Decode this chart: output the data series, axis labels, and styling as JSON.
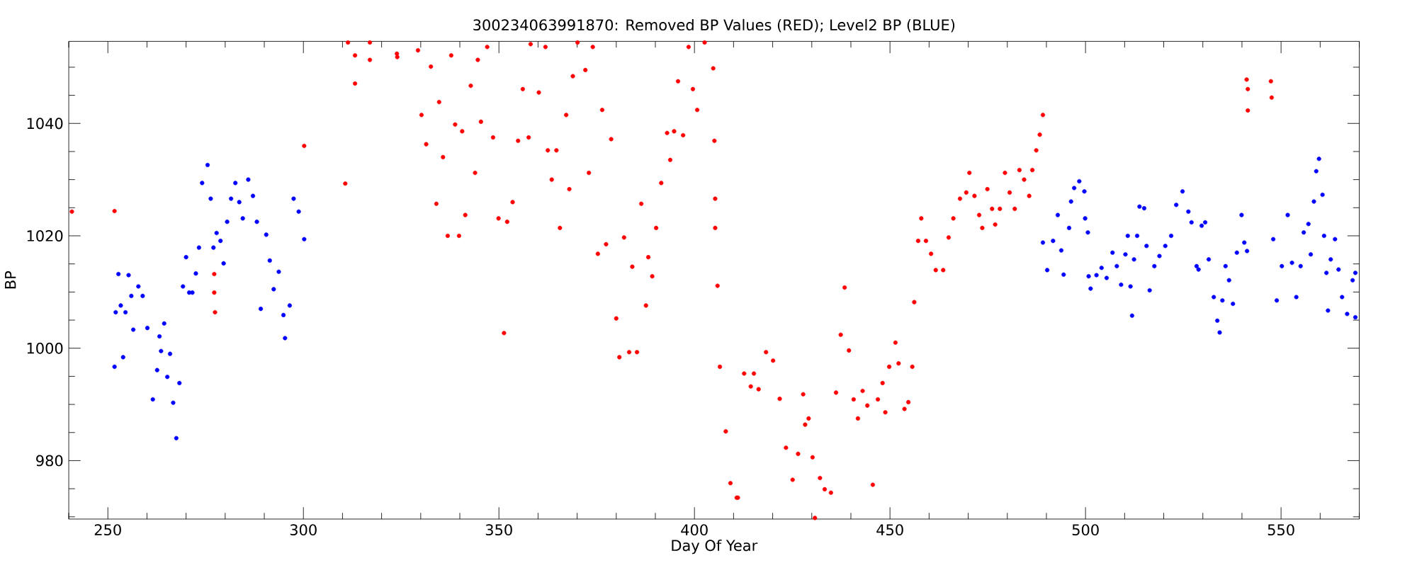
{
  "chart_data": {
    "type": "scatter",
    "title": "300234063991870: Removed BP Values (RED); Level2 BP (BLUE)",
    "xlabel": "Day Of Year",
    "ylabel": "BP",
    "marker": "circle",
    "xlim": [
      240,
      570
    ],
    "ylim": [
      969.6,
      1054.6
    ],
    "xticks": [
      {
        "value": 240,
        "label": null
      },
      250,
      {
        "value": 260,
        "label": null
      },
      {
        "value": 270,
        "label": null
      },
      {
        "value": 280,
        "label": null
      },
      {
        "value": 290,
        "label": null
      },
      300,
      {
        "value": 310,
        "label": null
      },
      {
        "value": 320,
        "label": null
      },
      {
        "value": 330,
        "label": null
      },
      {
        "value": 340,
        "label": null
      },
      350,
      {
        "value": 360,
        "label": null
      },
      {
        "value": 370,
        "label": null
      },
      {
        "value": 380,
        "label": null
      },
      {
        "value": 390,
        "label": null
      },
      400,
      {
        "value": 410,
        "label": null
      },
      {
        "value": 420,
        "label": null
      },
      {
        "value": 430,
        "label": null
      },
      {
        "value": 440,
        "label": null
      },
      450,
      {
        "value": 460,
        "label": null
      },
      {
        "value": 470,
        "label": null
      },
      {
        "value": 480,
        "label": null
      },
      {
        "value": 490,
        "label": null
      },
      500,
      {
        "value": 510,
        "label": null
      },
      {
        "value": 520,
        "label": null
      },
      {
        "value": 530,
        "label": null
      },
      {
        "value": 540,
        "label": null
      },
      550,
      {
        "value": 560,
        "label": null
      },
      {
        "value": 570,
        "label": null
      }
    ],
    "yticks": [
      {
        "value": 970,
        "label": null
      },
      {
        "value": 975,
        "label": null
      },
      980,
      {
        "value": 985,
        "label": null
      },
      {
        "value": 990,
        "label": null
      },
      {
        "value": 995,
        "label": null
      },
      1000,
      {
        "value": 1005,
        "label": null
      },
      {
        "value": 1010,
        "label": null
      },
      {
        "value": 1015,
        "label": null
      },
      1020,
      {
        "value": 1025,
        "label": null
      },
      {
        "value": 1030,
        "label": null
      },
      {
        "value": 1035,
        "label": null
      },
      1040,
      {
        "value": 1045,
        "label": null
      },
      {
        "value": 1050,
        "label": null
      }
    ],
    "series": [
      {
        "color": "#0000ff",
        "x": [
          251.7,
          252.0,
          252.7,
          253.3,
          253.9,
          254.5,
          255.3,
          256.0,
          256.5,
          257.8,
          258.9,
          260.1,
          261.5,
          262.6,
          263.2,
          263.6,
          264.4,
          265.2,
          265.9,
          266.7,
          267.5,
          268.3,
          269.2,
          270.0,
          270.8,
          271.6,
          272.5,
          273.3,
          274.1,
          275.5,
          276.3,
          277.0,
          277.8,
          278.8,
          279.6,
          280.5,
          281.5,
          282.6,
          283.6,
          284.5,
          285.9,
          287.1,
          288.1,
          289.1,
          290.5,
          291.4,
          292.4,
          293.7,
          294.9,
          295.3,
          296.5,
          297.5,
          298.8,
          300.2,
          489.1,
          490.2,
          491.7,
          492.9,
          493.8,
          494.4,
          495.8,
          496.3,
          497.1,
          498.4,
          499.7,
          499.9,
          500.6,
          500.8,
          501.3,
          502.8,
          504.1,
          505.4,
          506.9,
          508.0,
          509.1,
          510.2,
          510.8,
          511.5,
          511.9,
          512.4,
          513.2,
          513.8,
          515.0,
          515.6,
          516.4,
          517.6,
          518.9,
          520.4,
          521.9,
          523.2,
          524.8,
          526.3,
          527.1,
          528.4,
          528.9,
          529.7,
          530.6,
          531.5,
          532.8,
          533.7,
          534.3,
          535.0,
          535.8,
          536.7,
          537.7,
          538.7,
          539.9,
          540.6,
          541.3,
          548.0,
          548.9,
          550.2,
          551.7,
          552.8,
          553.9,
          555.0,
          555.8,
          557.0,
          557.6,
          558.4,
          559.0,
          559.7,
          560.6,
          561.0,
          561.6,
          562.0,
          562.7,
          563.8,
          564.7,
          565.6,
          566.9,
          568.3,
          569.0,
          569.0
        ],
        "values": [
          996.7,
          1006.4,
          1013.2,
          1007.6,
          998.4,
          1006.4,
          1013.0,
          1009.3,
          1003.3,
          1011.0,
          1009.3,
          1003.6,
          990.9,
          996.1,
          1002.1,
          999.5,
          1004.4,
          994.9,
          999.0,
          990.3,
          984.0,
          993.8,
          1011.0,
          1016.2,
          1009.9,
          1009.9,
          1013.3,
          1017.9,
          1029.4,
          1032.6,
          1026.6,
          1017.9,
          1020.5,
          1019.1,
          1015.1,
          1022.5,
          1026.6,
          1029.4,
          1026.0,
          1023.1,
          1030.0,
          1027.1,
          1022.5,
          1007.0,
          1020.2,
          1015.6,
          1010.5,
          1013.6,
          1005.9,
          1001.8,
          1007.6,
          1026.6,
          1024.3,
          1019.4,
          1018.8,
          1013.9,
          1019.1,
          1023.7,
          1017.4,
          1013.1,
          1021.4,
          1026.1,
          1028.5,
          1029.7,
          1027.9,
          1023.1,
          1020.6,
          1012.8,
          1010.6,
          1013.0,
          1014.3,
          1012.5,
          1017.0,
          1014.6,
          1011.3,
          1016.7,
          1020.0,
          1011.0,
          1005.8,
          1015.8,
          1020.0,
          1025.2,
          1024.9,
          1018.2,
          1010.3,
          1014.6,
          1016.4,
          1018.2,
          1020.0,
          1025.5,
          1027.9,
          1024.3,
          1022.4,
          1014.6,
          1014.0,
          1021.8,
          1022.4,
          1015.8,
          1009.1,
          1004.9,
          1002.8,
          1008.5,
          1014.6,
          1012.1,
          1007.9,
          1017.0,
          1023.7,
          1018.8,
          1017.3,
          1019.4,
          1008.5,
          1014.6,
          1023.7,
          1015.2,
          1009.1,
          1014.6,
          1020.6,
          1022.1,
          1016.7,
          1026.1,
          1031.5,
          1033.7,
          1027.3,
          1020.0,
          1013.4,
          1006.7,
          1015.8,
          1019.4,
          1014.0,
          1009.1,
          1006.1,
          1012.1,
          1013.4,
          1005.5
        ]
      },
      {
        "color": "#ff0000",
        "x": [
          240.8,
          251.7,
          277.2,
          277.2,
          277.4,
          300.2,
          310.7,
          311.4,
          313.2,
          313.2,
          317.0,
          317.0,
          323.9,
          324.0,
          329.3,
          330.2,
          331.4,
          332.6,
          334.0,
          334.7,
          335.7,
          336.9,
          337.8,
          338.8,
          339.8,
          340.6,
          341.4,
          342.8,
          343.9,
          344.6,
          345.4,
          347.0,
          348.5,
          349.9,
          351.3,
          352.1,
          353.5,
          354.9,
          356.1,
          357.6,
          358.1,
          360.2,
          361.9,
          362.5,
          363.5,
          364.7,
          365.6,
          367.2,
          368.0,
          368.9,
          370.1,
          372.1,
          373.0,
          374.0,
          375.3,
          376.4,
          377.4,
          378.7,
          380.0,
          380.8,
          382.0,
          383.3,
          384.1,
          385.3,
          386.4,
          387.6,
          388.2,
          389.2,
          390.2,
          391.5,
          393.0,
          393.8,
          394.8,
          395.8,
          397.1,
          398.5,
          399.6,
          400.7,
          402.6,
          404.8,
          405.1,
          405.3,
          405.3,
          405.9,
          406.5,
          408.0,
          409.2,
          410.8,
          411.1,
          412.7,
          414.4,
          415.2,
          416.4,
          418.3,
          420.1,
          421.8,
          423.4,
          425.1,
          426.5,
          427.8,
          428.3,
          429.2,
          430.2,
          430.8,
          432.1,
          433.3,
          434.9,
          436.2,
          437.4,
          438.4,
          439.5,
          440.7,
          441.8,
          443.0,
          444.2,
          445.6,
          446.9,
          448.1,
          448.8,
          449.8,
          451.4,
          452.2,
          453.7,
          454.7,
          455.7,
          456.2,
          457.2,
          458.0,
          459.2,
          460.5,
          461.7,
          463.6,
          465.0,
          466.2,
          467.9,
          469.5,
          470.3,
          471.6,
          472.8,
          473.6,
          474.9,
          476.1,
          476.9,
          478.1,
          479.4,
          480.6,
          481.9,
          483.1,
          484.3,
          485.6,
          486.4,
          487.4,
          488.3,
          489.1,
          541.2,
          541.5,
          541.5,
          547.4,
          547.6
        ],
        "values": [
          1024.3,
          1024.4,
          1013.2,
          1009.9,
          1006.4,
          1036.0,
          1029.3,
          1054.4,
          1047.1,
          1052.1,
          1051.3,
          1054.4,
          1052.4,
          1051.8,
          1053.0,
          1041.5,
          1036.3,
          1050.1,
          1025.7,
          1043.8,
          1034.0,
          1020.0,
          1052.1,
          1039.8,
          1020.0,
          1038.6,
          1023.7,
          1046.7,
          1031.2,
          1051.3,
          1040.3,
          1053.6,
          1037.5,
          1023.1,
          1002.7,
          1022.5,
          1026.0,
          1036.9,
          1046.1,
          1037.5,
          1054.1,
          1045.5,
          1053.6,
          1035.2,
          1030.0,
          1035.2,
          1021.4,
          1041.5,
          1028.3,
          1048.4,
          1054.4,
          1049.5,
          1031.2,
          1053.6,
          1016.8,
          1042.4,
          1018.5,
          1037.2,
          1005.3,
          998.4,
          1019.7,
          999.3,
          1014.5,
          999.3,
          1025.7,
          1007.6,
          1016.2,
          1012.8,
          1021.4,
          1029.4,
          1038.3,
          1033.5,
          1038.6,
          1047.5,
          1037.9,
          1053.6,
          1046.1,
          1042.4,
          1054.4,
          1049.8,
          1036.9,
          1026.6,
          1021.4,
          1011.1,
          996.7,
          985.2,
          976.0,
          973.4,
          973.4,
          995.5,
          993.2,
          995.5,
          992.7,
          999.3,
          997.8,
          991.0,
          982.3,
          976.6,
          981.2,
          991.8,
          986.4,
          987.5,
          980.6,
          969.8,
          976.9,
          974.9,
          974.3,
          992.1,
          1002.4,
          1010.8,
          999.6,
          990.9,
          987.5,
          992.4,
          989.8,
          975.7,
          990.9,
          993.8,
          988.6,
          996.7,
          1001.0,
          997.3,
          989.2,
          990.4,
          996.7,
          1008.2,
          1019.1,
          1023.1,
          1019.1,
          1016.8,
          1013.9,
          1013.9,
          1019.7,
          1023.1,
          1026.6,
          1027.7,
          1031.2,
          1027.1,
          1023.7,
          1021.4,
          1028.3,
          1024.8,
          1022.0,
          1024.8,
          1031.2,
          1027.7,
          1024.8,
          1031.7,
          1030.0,
          1027.1,
          1031.7,
          1035.2,
          1038.0,
          1041.5,
          1047.8,
          1046.1,
          1042.3,
          1047.5,
          1044.6
        ]
      }
    ]
  }
}
